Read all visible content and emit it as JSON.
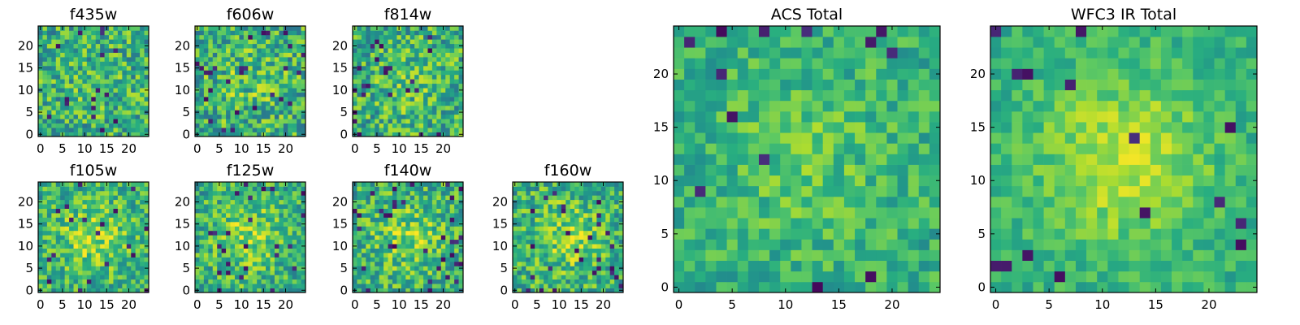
{
  "chart_data": {
    "type": "heatmap",
    "colormap": {
      "name": "viridis",
      "stops": [
        "#440154",
        "#472d7b",
        "#3b528b",
        "#2c728e",
        "#21918c",
        "#28ae80",
        "#5ec962",
        "#addc30",
        "#fde725"
      ]
    },
    "panels": [
      {
        "id": "f435w",
        "title": "f435w",
        "size": 25,
        "xticks": [
          0,
          5,
          10,
          15,
          20
        ],
        "yticks": [
          0,
          5,
          10,
          15,
          20
        ],
        "seed": 11,
        "contrast": 0.26,
        "center_boost": 0.05,
        "dark_spots": 0.03
      },
      {
        "id": "f606w",
        "title": "f606w",
        "size": 25,
        "xticks": [
          0,
          5,
          10,
          15,
          20
        ],
        "yticks": [
          0,
          5,
          10,
          15,
          20
        ],
        "seed": 23,
        "contrast": 0.27,
        "center_boost": 0.1,
        "dark_spots": 0.04
      },
      {
        "id": "f814w",
        "title": "f814w",
        "size": 25,
        "xticks": [
          0,
          5,
          10,
          15,
          20
        ],
        "yticks": [
          0,
          5,
          10,
          15,
          20
        ],
        "seed": 37,
        "contrast": 0.26,
        "center_boost": 0.1,
        "dark_spots": 0.04
      },
      {
        "id": "f105w",
        "title": "f105w",
        "size": 25,
        "xticks": [
          0,
          5,
          10,
          15,
          20
        ],
        "yticks": [
          0,
          5,
          10,
          15,
          20
        ],
        "seed": 41,
        "contrast": 0.22,
        "center_boost": 0.22,
        "dark_spots": 0.04
      },
      {
        "id": "f125w",
        "title": "f125w",
        "size": 25,
        "xticks": [
          0,
          5,
          10,
          15,
          20
        ],
        "yticks": [
          0,
          5,
          10,
          15,
          20
        ],
        "seed": 53,
        "contrast": 0.23,
        "center_boost": 0.2,
        "dark_spots": 0.05
      },
      {
        "id": "f140w",
        "title": "f140w",
        "size": 25,
        "xticks": [
          0,
          5,
          10,
          15,
          20
        ],
        "yticks": [
          0,
          5,
          10,
          15,
          20
        ],
        "seed": 67,
        "contrast": 0.24,
        "center_boost": 0.18,
        "dark_spots": 0.05
      },
      {
        "id": "f160w",
        "title": "f160w",
        "size": 25,
        "xticks": [
          0,
          5,
          10,
          15,
          20
        ],
        "yticks": [
          0,
          5,
          10,
          15,
          20
        ],
        "seed": 79,
        "contrast": 0.24,
        "center_boost": 0.18,
        "dark_spots": 0.05
      },
      {
        "id": "acs-total",
        "title": "ACS Total",
        "size": 25,
        "xticks": [
          0,
          5,
          10,
          15,
          20
        ],
        "yticks": [
          0,
          5,
          10,
          15,
          20
        ],
        "seed": 97,
        "contrast": 0.16,
        "center_boost": 0.12,
        "dark_spots": 0.025
      },
      {
        "id": "wfc3-ir-total",
        "title": "WFC3 IR Total",
        "size": 25,
        "xticks": [
          0,
          5,
          10,
          15,
          20
        ],
        "yticks": [
          0,
          5,
          10,
          15,
          20
        ],
        "seed": 113,
        "contrast": 0.12,
        "center_boost": 0.28,
        "dark_spots": 0.02
      }
    ]
  }
}
